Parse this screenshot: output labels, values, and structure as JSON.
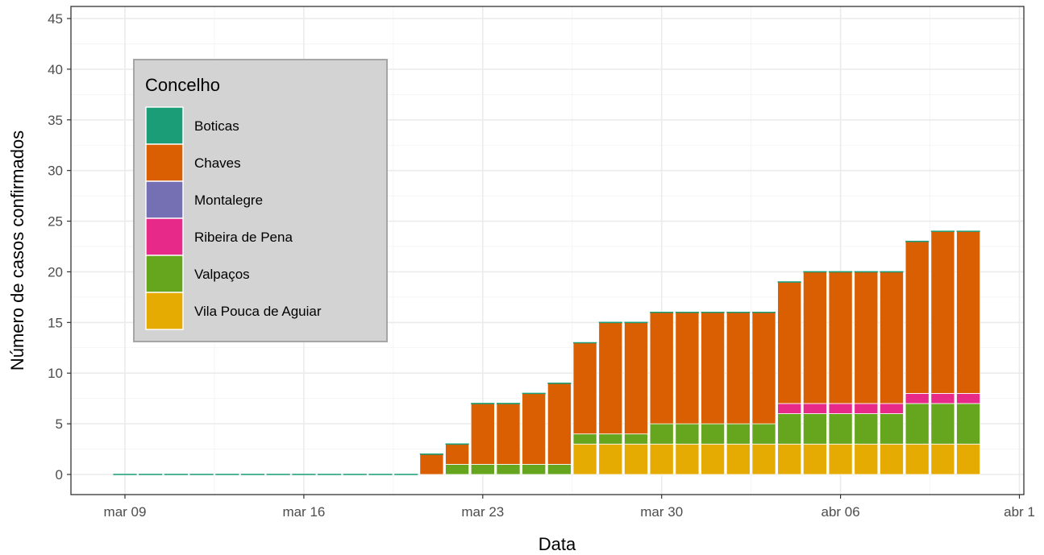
{
  "chart_data": {
    "type": "bar",
    "stacked": true,
    "xlabel": "Data",
    "ylabel": "Número de casos confirmados",
    "ylim": [
      0,
      45
    ],
    "yticks": [
      0,
      5,
      10,
      15,
      20,
      25,
      30,
      35,
      40,
      45
    ],
    "xticks": [
      "mar 09",
      "mar 16",
      "mar 23",
      "mar 30",
      "abr 06",
      "abr 1"
    ],
    "grid": true,
    "legend": {
      "title": "Concelho",
      "position": "top-left"
    },
    "categories": [
      "2020-03-09",
      "2020-03-10",
      "2020-03-11",
      "2020-03-12",
      "2020-03-13",
      "2020-03-14",
      "2020-03-15",
      "2020-03-16",
      "2020-03-17",
      "2020-03-18",
      "2020-03-19",
      "2020-03-20",
      "2020-03-21",
      "2020-03-22",
      "2020-03-23",
      "2020-03-24",
      "2020-03-25",
      "2020-03-26",
      "2020-03-27",
      "2020-03-28",
      "2020-03-29",
      "2020-03-30",
      "2020-03-31",
      "2020-04-01",
      "2020-04-02",
      "2020-04-03",
      "2020-04-04",
      "2020-04-05",
      "2020-04-06",
      "2020-04-07",
      "2020-04-08",
      "2020-04-09",
      "2020-04-10",
      "2020-04-11"
    ],
    "series": [
      {
        "name": "Vila Pouca de Aguiar",
        "color": "#E6AB02",
        "values": [
          0,
          0,
          0,
          0,
          0,
          0,
          0,
          0,
          0,
          0,
          0,
          0,
          0,
          0,
          0,
          0,
          0,
          0,
          3,
          3,
          3,
          3,
          3,
          3,
          3,
          3,
          3,
          3,
          3,
          3,
          3,
          3,
          3,
          3
        ]
      },
      {
        "name": "Valpaços",
        "color": "#66A61E",
        "values": [
          0,
          0,
          0,
          0,
          0,
          0,
          0,
          0,
          0,
          0,
          0,
          0,
          0,
          1,
          1,
          1,
          1,
          1,
          1,
          1,
          1,
          2,
          2,
          2,
          2,
          2,
          3,
          3,
          3,
          3,
          3,
          4,
          4,
          4
        ]
      },
      {
        "name": "Ribeira de Pena",
        "color": "#E7298A",
        "values": [
          0,
          0,
          0,
          0,
          0,
          0,
          0,
          0,
          0,
          0,
          0,
          0,
          0,
          0,
          0,
          0,
          0,
          0,
          0,
          0,
          0,
          0,
          0,
          0,
          0,
          0,
          1,
          1,
          1,
          1,
          1,
          1,
          1,
          1
        ]
      },
      {
        "name": "Montalegre",
        "color": "#7570B3",
        "values": [
          0,
          0,
          0,
          0,
          0,
          0,
          0,
          0,
          0,
          0,
          0,
          0,
          0,
          0,
          0,
          0,
          0,
          0,
          0,
          0,
          0,
          0,
          0,
          0,
          0,
          0,
          0,
          0,
          0,
          0,
          0,
          0,
          0,
          0
        ]
      },
      {
        "name": "Chaves",
        "color": "#D95F02",
        "values": [
          0,
          0,
          0,
          0,
          0,
          0,
          0,
          0,
          0,
          0,
          0,
          0,
          2,
          2,
          6,
          6,
          7,
          8,
          9,
          11,
          11,
          11,
          11,
          11,
          11,
          11,
          12,
          13,
          13,
          13,
          13,
          15,
          16,
          16
        ]
      },
      {
        "name": "Boticas",
        "color": "#1B9E77",
        "values": [
          0,
          0,
          0,
          0,
          0,
          0,
          0,
          0,
          0,
          0,
          0,
          0,
          0,
          0,
          0,
          0,
          0,
          0,
          0,
          0,
          0,
          0,
          0,
          0,
          0,
          0,
          0,
          0,
          0,
          0,
          0,
          0,
          0,
          0
        ]
      }
    ],
    "legend_order": [
      "Boticas",
      "Chaves",
      "Montalegre",
      "Ribeira de Pena",
      "Valpaços",
      "Vila Pouca de Aguiar"
    ]
  }
}
